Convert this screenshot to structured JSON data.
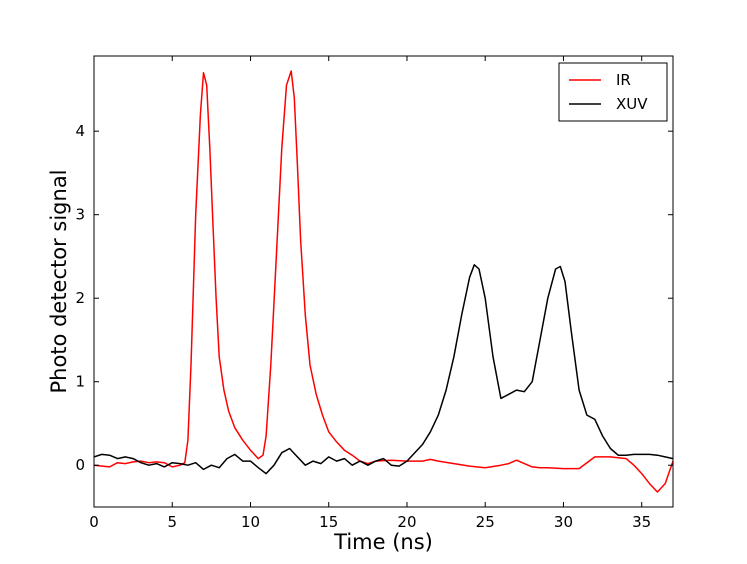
{
  "chart_data": {
    "type": "line",
    "title": "",
    "xlabel": "Time (ns)",
    "ylabel": "Photo detector signal",
    "xlim": [
      0,
      37
    ],
    "ylim": [
      -0.5,
      4.9
    ],
    "xticks": [
      0,
      5,
      10,
      15,
      20,
      25,
      30,
      35
    ],
    "yticks": [
      0,
      1,
      2,
      3,
      4
    ],
    "grid": false,
    "legend_position": "top-right",
    "series": [
      {
        "name": "IR",
        "color": "#ff0000",
        "x": [
          0,
          1,
          1.5,
          2,
          2.5,
          3,
          3.5,
          4,
          4.5,
          5,
          5.5,
          5.8,
          6.0,
          6.2,
          6.5,
          6.8,
          7.0,
          7.2,
          7.4,
          7.6,
          7.8,
          8.0,
          8.3,
          8.6,
          9.0,
          9.5,
          10.0,
          10.5,
          10.8,
          11.0,
          11.3,
          11.6,
          12.0,
          12.3,
          12.6,
          12.8,
          13.0,
          13.2,
          13.5,
          13.8,
          14.2,
          14.6,
          15.0,
          15.5,
          16.0,
          16.5,
          17.0,
          17.5,
          18.0,
          19.0,
          20.0,
          21.0,
          21.5,
          22.0,
          23.0,
          24.0,
          25.0,
          26.0,
          26.5,
          27.0,
          27.5,
          28.0,
          28.5,
          29.0,
          30.0,
          31.0,
          32.0,
          33.0,
          34.0,
          34.5,
          35.0,
          35.5,
          36.0,
          36.5,
          37.0
        ],
        "y": [
          0,
          -0.02,
          0.03,
          0.02,
          0.04,
          0.05,
          0.03,
          0.04,
          0.03,
          -0.02,
          0.0,
          0.03,
          0.3,
          1.2,
          3.0,
          4.2,
          4.7,
          4.55,
          3.8,
          2.9,
          2.0,
          1.3,
          0.9,
          0.65,
          0.45,
          0.3,
          0.18,
          0.08,
          0.12,
          0.35,
          1.2,
          2.3,
          3.8,
          4.55,
          4.72,
          4.4,
          3.6,
          2.7,
          1.8,
          1.2,
          0.85,
          0.6,
          0.4,
          0.28,
          0.18,
          0.12,
          0.05,
          0.02,
          0.05,
          0.06,
          0.05,
          0.05,
          0.07,
          0.05,
          0.02,
          -0.01,
          -0.03,
          0.0,
          0.02,
          0.06,
          0.02,
          -0.02,
          -0.03,
          -0.03,
          -0.04,
          -0.04,
          0.1,
          0.1,
          0.08,
          0.0,
          -0.1,
          -0.22,
          -0.32,
          -0.22,
          0.05
        ]
      },
      {
        "name": "XUV",
        "color": "#000000",
        "x": [
          0,
          0.5,
          1.0,
          1.5,
          2.0,
          2.5,
          3.0,
          3.5,
          4.0,
          4.5,
          5.0,
          5.5,
          6.0,
          6.5,
          7.0,
          7.5,
          8.0,
          8.5,
          9.0,
          9.5,
          10.0,
          10.5,
          11.0,
          11.5,
          12.0,
          12.5,
          13.0,
          13.5,
          14.0,
          14.5,
          15.0,
          15.5,
          16.0,
          16.5,
          17.0,
          17.5,
          18.0,
          18.5,
          19.0,
          19.5,
          20.0,
          20.5,
          21.0,
          21.5,
          22.0,
          22.5,
          23.0,
          23.5,
          24.0,
          24.3,
          24.6,
          25.0,
          25.5,
          26.0,
          26.5,
          27.0,
          27.5,
          28.0,
          28.5,
          29.0,
          29.5,
          29.8,
          30.1,
          30.5,
          31.0,
          31.5,
          32.0,
          32.5,
          33.0,
          33.5,
          34.0,
          34.5,
          35.0,
          35.5,
          36.0,
          36.5,
          37.0
        ],
        "y": [
          0.1,
          0.13,
          0.12,
          0.08,
          0.1,
          0.08,
          0.03,
          0.0,
          0.02,
          -0.02,
          0.03,
          0.02,
          0.0,
          0.03,
          -0.05,
          0.0,
          -0.03,
          0.08,
          0.13,
          0.05,
          0.05,
          -0.03,
          -0.1,
          0.0,
          0.15,
          0.2,
          0.1,
          0.0,
          0.05,
          0.02,
          0.1,
          0.05,
          0.08,
          0.0,
          0.05,
          0.0,
          0.05,
          0.08,
          0.0,
          -0.01,
          0.05,
          0.15,
          0.25,
          0.4,
          0.6,
          0.9,
          1.3,
          1.8,
          2.25,
          2.4,
          2.35,
          2.0,
          1.3,
          0.8,
          0.85,
          0.9,
          0.88,
          1.0,
          1.5,
          2.0,
          2.35,
          2.38,
          2.2,
          1.6,
          0.9,
          0.6,
          0.55,
          0.35,
          0.2,
          0.12,
          0.12,
          0.13,
          0.13,
          0.13,
          0.12,
          0.1,
          0.08
        ]
      }
    ]
  }
}
